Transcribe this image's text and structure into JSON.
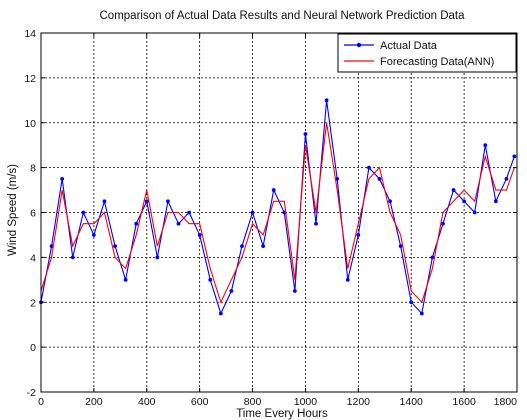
{
  "chart_data": {
    "type": "line",
    "title": "Comparison of Actual Data Results and Neural Network Prediction Data",
    "xlabel": "Time Every Hours",
    "ylabel": "Wind Speed (m/s)",
    "xlim": [
      0,
      1800
    ],
    "ylim": [
      -2,
      14
    ],
    "xticks": [
      0,
      200,
      400,
      600,
      800,
      1000,
      1200,
      1400,
      1600,
      1800
    ],
    "yticks": [
      -2,
      0,
      2,
      4,
      6,
      8,
      10,
      12,
      14
    ],
    "grid": true,
    "legend_position": "top-right",
    "series": [
      {
        "name": "Actual Data",
        "color": "#0000ff",
        "marker": "dot",
        "x": [
          0,
          40,
          80,
          120,
          160,
          200,
          240,
          280,
          320,
          360,
          400,
          440,
          480,
          520,
          560,
          600,
          640,
          680,
          720,
          760,
          800,
          840,
          880,
          920,
          960,
          1000,
          1040,
          1080,
          1120,
          1160,
          1200,
          1240,
          1280,
          1320,
          1360,
          1400,
          1440,
          1480,
          1520,
          1560,
          1600,
          1640,
          1680,
          1720,
          1760,
          1790
        ],
        "y": [
          2.0,
          4.5,
          7.5,
          4.0,
          6.0,
          5.0,
          6.5,
          4.5,
          3.0,
          5.5,
          6.5,
          4.0,
          6.5,
          5.5,
          6.0,
          5.0,
          3.0,
          1.5,
          2.5,
          4.5,
          6.0,
          4.5,
          7.0,
          6.0,
          2.5,
          9.5,
          5.5,
          11.0,
          7.5,
          3.0,
          5.0,
          8.0,
          7.5,
          6.5,
          4.5,
          2.0,
          1.5,
          4.0,
          5.5,
          7.0,
          6.5,
          6.0,
          9.0,
          6.5,
          7.5,
          8.5
        ]
      },
      {
        "name": "Forecasting Data(ANN)",
        "color": "#ff0000",
        "marker": "none",
        "x": [
          0,
          40,
          80,
          120,
          160,
          200,
          240,
          280,
          320,
          360,
          400,
          440,
          480,
          520,
          560,
          600,
          640,
          680,
          720,
          760,
          800,
          840,
          880,
          920,
          960,
          1000,
          1040,
          1080,
          1120,
          1160,
          1200,
          1240,
          1280,
          1320,
          1360,
          1400,
          1440,
          1480,
          1520,
          1560,
          1600,
          1640,
          1680,
          1720,
          1760,
          1790
        ],
        "y": [
          2.5,
          4.0,
          7.0,
          4.5,
          5.5,
          5.5,
          6.0,
          4.0,
          3.5,
          5.0,
          7.0,
          4.5,
          6.0,
          6.0,
          5.5,
          5.5,
          3.5,
          2.0,
          3.0,
          4.0,
          5.5,
          5.0,
          6.5,
          6.5,
          3.0,
          9.0,
          6.0,
          10.0,
          7.0,
          3.5,
          5.5,
          7.5,
          8.0,
          6.0,
          5.0,
          2.5,
          2.0,
          3.5,
          6.0,
          6.5,
          7.0,
          6.5,
          8.5,
          7.0,
          7.0,
          8.0
        ]
      }
    ]
  }
}
